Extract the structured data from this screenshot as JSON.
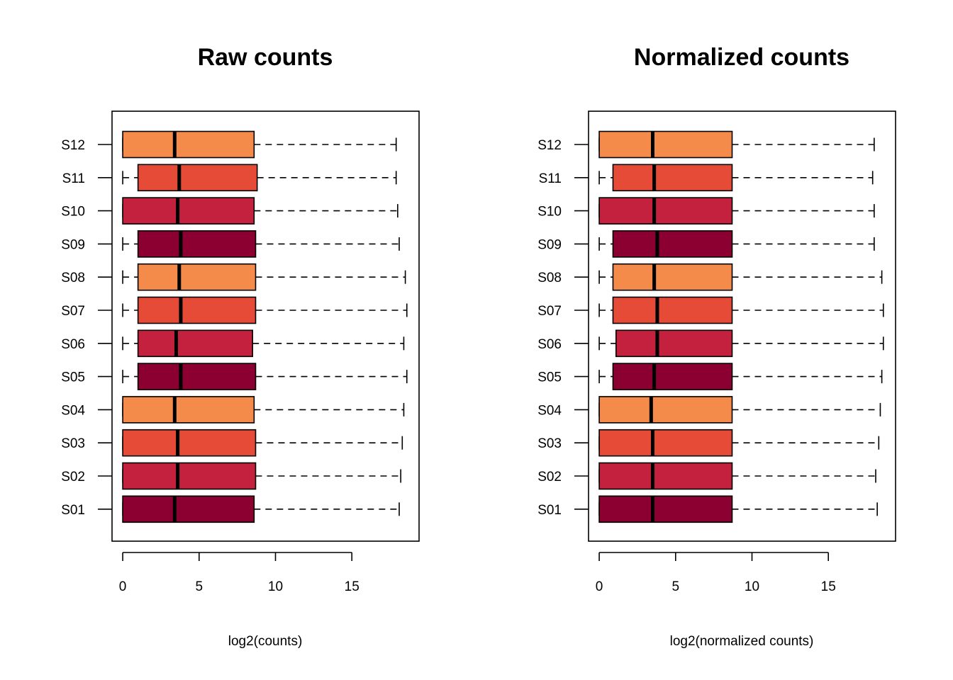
{
  "chart_data": [
    {
      "type": "boxplot",
      "orientation": "horizontal",
      "title": "Raw counts",
      "xlabel": "log2(counts)",
      "ylabel": "",
      "xlim": [
        -0.7,
        19.4
      ],
      "xticks": [
        0,
        5,
        10,
        15
      ],
      "categories": [
        "S01",
        "S02",
        "S03",
        "S04",
        "S05",
        "S06",
        "S07",
        "S08",
        "S09",
        "S10",
        "S11",
        "S12"
      ],
      "colors": [
        "#8B0030",
        "#C4213F",
        "#E64B37",
        "#F58B4A",
        "#8B0030",
        "#C4213F",
        "#E64B37",
        "#F58B4A",
        "#8B0030",
        "#C4213F",
        "#E64B37",
        "#F58B4A"
      ],
      "boxes": [
        {
          "min": 0,
          "q1": 0,
          "median": 3.4,
          "q3": 8.6,
          "max": 18.1
        },
        {
          "min": 0,
          "q1": 0,
          "median": 3.6,
          "q3": 8.7,
          "max": 18.2
        },
        {
          "min": 0,
          "q1": 0,
          "median": 3.6,
          "q3": 8.7,
          "max": 18.3
        },
        {
          "min": 0,
          "q1": 0,
          "median": 3.4,
          "q3": 8.6,
          "max": 18.4
        },
        {
          "min": 0,
          "q1": 1.0,
          "median": 3.8,
          "q3": 8.7,
          "max": 18.6
        },
        {
          "min": 0,
          "q1": 1.0,
          "median": 3.5,
          "q3": 8.5,
          "max": 18.4
        },
        {
          "min": 0,
          "q1": 1.0,
          "median": 3.8,
          "q3": 8.7,
          "max": 18.6
        },
        {
          "min": 0,
          "q1": 1.0,
          "median": 3.7,
          "q3": 8.7,
          "max": 18.5
        },
        {
          "min": 0,
          "q1": 1.0,
          "median": 3.8,
          "q3": 8.7,
          "max": 18.1
        },
        {
          "min": 0,
          "q1": 0,
          "median": 3.6,
          "q3": 8.6,
          "max": 18.0
        },
        {
          "min": 0,
          "q1": 1.0,
          "median": 3.7,
          "q3": 8.8,
          "max": 17.9
        },
        {
          "min": 0,
          "q1": 0,
          "median": 3.4,
          "q3": 8.6,
          "max": 17.9
        }
      ]
    },
    {
      "type": "boxplot",
      "orientation": "horizontal",
      "title": "Normalized counts",
      "xlabel": "log2(normalized counts)",
      "ylabel": "",
      "xlim": [
        -0.7,
        19.4
      ],
      "xticks": [
        0,
        5,
        10,
        15
      ],
      "categories": [
        "S01",
        "S02",
        "S03",
        "S04",
        "S05",
        "S06",
        "S07",
        "S08",
        "S09",
        "S10",
        "S11",
        "S12"
      ],
      "colors": [
        "#8B0030",
        "#C4213F",
        "#E64B37",
        "#F58B4A",
        "#8B0030",
        "#C4213F",
        "#E64B37",
        "#F58B4A",
        "#8B0030",
        "#C4213F",
        "#E64B37",
        "#F58B4A"
      ],
      "boxes": [
        {
          "min": 0,
          "q1": 0,
          "median": 3.5,
          "q3": 8.7,
          "max": 18.2
        },
        {
          "min": 0,
          "q1": 0,
          "median": 3.5,
          "q3": 8.7,
          "max": 18.1
        },
        {
          "min": 0,
          "q1": 0,
          "median": 3.5,
          "q3": 8.7,
          "max": 18.3
        },
        {
          "min": 0,
          "q1": 0,
          "median": 3.4,
          "q3": 8.7,
          "max": 18.4
        },
        {
          "min": 0,
          "q1": 0.9,
          "median": 3.6,
          "q3": 8.7,
          "max": 18.5
        },
        {
          "min": 0,
          "q1": 1.1,
          "median": 3.8,
          "q3": 8.7,
          "max": 18.6
        },
        {
          "min": 0,
          "q1": 0.9,
          "median": 3.8,
          "q3": 8.7,
          "max": 18.6
        },
        {
          "min": 0,
          "q1": 0.9,
          "median": 3.6,
          "q3": 8.7,
          "max": 18.5
        },
        {
          "min": 0,
          "q1": 0.9,
          "median": 3.8,
          "q3": 8.7,
          "max": 18.0
        },
        {
          "min": 0,
          "q1": 0,
          "median": 3.6,
          "q3": 8.7,
          "max": 18.0
        },
        {
          "min": 0,
          "q1": 0.9,
          "median": 3.6,
          "q3": 8.7,
          "max": 17.9
        },
        {
          "min": 0,
          "q1": 0,
          "median": 3.5,
          "q3": 8.7,
          "max": 18.0
        }
      ]
    }
  ]
}
